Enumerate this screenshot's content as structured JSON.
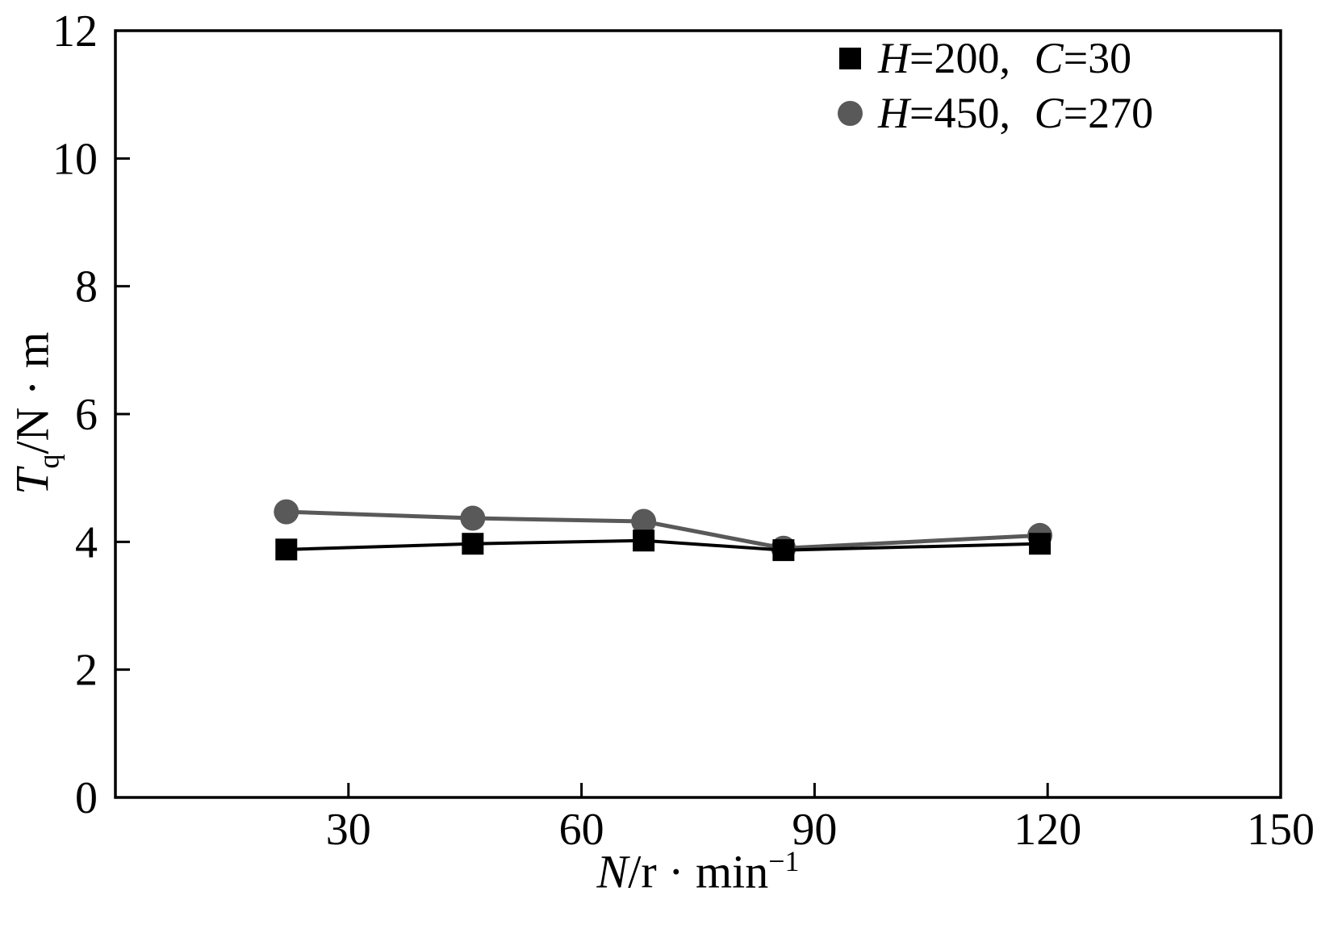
{
  "chart_data": {
    "type": "line",
    "x": [
      22,
      46,
      68,
      86,
      119
    ],
    "series": [
      {
        "name": "H=200, C=30",
        "marker": "square",
        "color": "#000000",
        "line_width": 4,
        "values": [
          3.88,
          3.97,
          4.02,
          3.87,
          3.97
        ]
      },
      {
        "name": "H=450, C=270",
        "marker": "circle",
        "color": "#595959",
        "line_width": 5,
        "values": [
          4.47,
          4.37,
          4.32,
          3.9,
          4.1
        ]
      }
    ],
    "title": "",
    "xlabel": "N/r·min⁻¹",
    "ylabel": "Tq/N·m",
    "xlim": [
      0,
      150
    ],
    "ylim": [
      0,
      12
    ],
    "xticks": [
      30,
      60,
      90,
      120,
      150
    ],
    "yticks": [
      0,
      2,
      4,
      6,
      8,
      10,
      12
    ],
    "grid": false,
    "legend_position": "top-right",
    "frame_color": "#000000"
  },
  "labels": {
    "ylabel": {
      "var": "T",
      "sub": "q",
      "rest": "/N · m"
    },
    "xlabel": {
      "var": "N",
      "rest": "/r · min",
      "sup": "−1"
    },
    "legend": [
      {
        "v1": "H",
        "t1": "=200,",
        "v2": "C",
        "t2": "=30"
      },
      {
        "v1": "H",
        "t1": "=450,",
        "v2": "C",
        "t2": "=270"
      }
    ]
  },
  "colors": {
    "series_black": "#000000",
    "series_gray": "#595959",
    "axis": "#000000",
    "background": "#ffffff"
  }
}
